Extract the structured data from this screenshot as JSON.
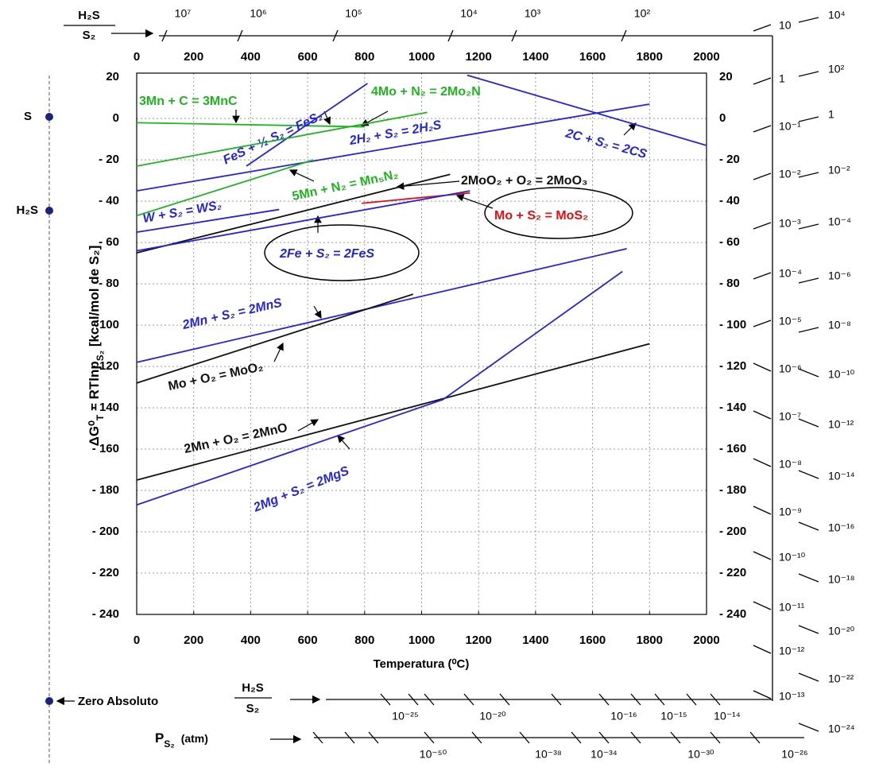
{
  "chart_data": {
    "type": "line",
    "x_title": "Temperatura (⁰C)",
    "y_title": [
      "ΔG⁰",
      "T",
      " = RTlnp",
      "S₂",
      " [kcal/mol de S₂]"
    ],
    "xlim": [
      0,
      2000
    ],
    "ylim": [
      -240,
      22
    ],
    "xticks": [
      0,
      200,
      400,
      600,
      800,
      1000,
      1200,
      1400,
      1600,
      1800,
      2000
    ],
    "yticks": [
      20,
      0,
      {
        "value": -20,
        "label": "- 20"
      },
      {
        "value": -40,
        "label": "- 40"
      },
      {
        "value": -60,
        "label": "- 60"
      },
      {
        "value": -80,
        "label": "- 80"
      },
      {
        "value": -100,
        "label": "- 100"
      },
      {
        "value": -120,
        "label": "- 120"
      },
      {
        "value": -140,
        "label": "- 140"
      },
      {
        "value": -160,
        "label": "- 160"
      },
      {
        "value": -180,
        "label": "- 180"
      },
      {
        "value": -200,
        "label": "- 200"
      },
      {
        "value": -220,
        "label": "- 220"
      },
      {
        "value": -240,
        "label": "- 240"
      }
    ],
    "grid": true,
    "series": [
      {
        "name": "3Mn + C = 3MnC",
        "color": "#1fb51f",
        "x": [
          0,
          800
        ],
        "values": [
          -2,
          -4
        ]
      },
      {
        "name": "FeS + ½ S₂ = FeS₂",
        "color": "#2323e0",
        "x": [
          385,
          810
        ],
        "values": [
          -23,
          17
        ]
      },
      {
        "name": "4Mo + N₂ = 2Mo₂N",
        "color": "#1fb51f",
        "x": [
          0,
          1020
        ],
        "values": [
          -23,
          3
        ]
      },
      {
        "name": "2H₂ + S₂ = 2H₂S",
        "color": "#2323e0",
        "x": [
          0,
          1800
        ],
        "values": [
          -35,
          7
        ]
      },
      {
        "name": "2C + S₂ = 2CS",
        "color": "#2323e0",
        "x": [
          1160,
          2000
        ],
        "values": [
          21,
          -13
        ]
      },
      {
        "name": "W + S₂ = WS₂",
        "color": "#2323e0",
        "x": [
          0,
          500
        ],
        "values": [
          -55,
          -44
        ]
      },
      {
        "name": "5Mn + N₂ = Mn₅N₂",
        "color": "#1fb51f",
        "x": [
          0,
          620
        ],
        "values": [
          -47,
          -20
        ]
      },
      {
        "name": "2MoO₂ + O₂ = 2MoO₃",
        "color": "#111111",
        "x": [
          0,
          1100
        ],
        "values": [
          -65,
          -27
        ]
      },
      {
        "name": "Mo + S₂ = MoS₂",
        "color": "#e01010",
        "x": [
          790,
          1170
        ],
        "values": [
          -41,
          -36
        ]
      },
      {
        "name": "2Fe + S₂ = 2FeS",
        "color": "#2323e0",
        "x": [
          0,
          1170
        ],
        "values": [
          -64,
          -35
        ]
      },
      {
        "name": "2Mn + S₂ = 2MnS",
        "color": "#2323e0",
        "x": [
          0,
          1720
        ],
        "values": [
          -118,
          -63
        ]
      },
      {
        "name": "Mo + O₂ = MoO₂",
        "color": "#111111",
        "x": [
          0,
          970
        ],
        "values": [
          -128,
          -85
        ]
      },
      {
        "name": "2Mn + O₂ = 2MnO",
        "color": "#111111",
        "x": [
          0,
          1800
        ],
        "values": [
          -175,
          -109
        ]
      },
      {
        "name": "2Mg + S₂ = 2MgS",
        "color": "#2323e0",
        "x": [
          0,
          1075,
          1705
        ],
        "values": [
          -187,
          -136,
          -74
        ]
      }
    ]
  },
  "ratio": {
    "numerator": "H₂S",
    "denominator": "S₂"
  },
  "ratio_top_labels": [
    "10⁷",
    "10⁶",
    "10⁵",
    "10⁴",
    "10³",
    "10²"
  ],
  "ratio_right_labels": [
    "10",
    "1",
    "10⁻¹",
    "10⁻²",
    "10⁻³",
    "10⁻⁴",
    "10⁻⁵",
    "10⁻⁶",
    "10⁻⁷",
    "10⁻⁸",
    "10⁻⁹",
    "10⁻¹⁰",
    "10⁻¹¹",
    "10⁻¹²",
    "10⁻¹³"
  ],
  "ps2_right_labels": [
    "10⁴",
    "10²",
    "1",
    "10⁻²",
    "10⁻⁴",
    "10⁻⁶",
    "10⁻⁸",
    "10⁻¹⁰",
    "10⁻¹²",
    "10⁻¹⁴",
    "10⁻¹⁶",
    "10⁻¹⁸",
    "10⁻²⁰",
    "10⁻²²",
    "10⁻²⁴"
  ],
  "ratio_bottom_labels": [
    "10⁻²⁵",
    "10⁻²⁰",
    "10⁻¹⁶",
    "10⁻¹⁵",
    "10⁻¹⁴"
  ],
  "ps2": {
    "symbol": "P",
    "sub": "S₂",
    "unit": "(atm)"
  },
  "ps2_bottom_labels": [
    "10⁻⁵⁰",
    "10⁻³⁸",
    "10⁻³⁴",
    "10⁻³⁰",
    "10⁻²⁶"
  ],
  "left_points": {
    "s": "S",
    "h2s": "H₂S",
    "zero": "Zero Absoluto"
  }
}
